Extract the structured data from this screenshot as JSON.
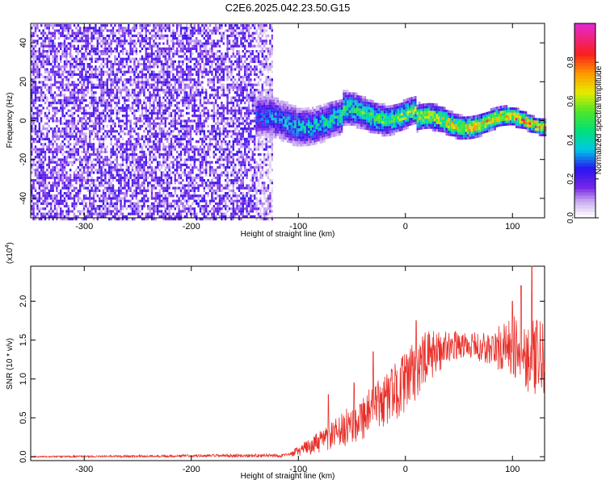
{
  "chart_data": [
    {
      "type": "heatmap",
      "title": "C2E6.2025.042.23.50.G15",
      "xlabel": "Height of straight line (km)",
      "ylabel": "Frequency (Hz)",
      "xlim": [
        -350,
        130
      ],
      "ylim": [
        -50,
        50
      ],
      "xticks": [
        -300,
        -200,
        -100,
        0,
        100
      ],
      "yticks": [
        -40,
        -20,
        0,
        20,
        40
      ],
      "colorbar": {
        "label": "Normalized spectral amplitude",
        "range": [
          0,
          1
        ],
        "ticks": [
          0.0,
          0.2,
          0.4,
          0.6,
          0.8
        ],
        "tick_labels": [
          "0.0",
          "0.2",
          "0.4",
          "0.6",
          "0.8"
        ]
      },
      "regions": [
        {
          "name": "broadband noise",
          "x_from": -350,
          "x_to": -125,
          "freq_from": -50,
          "freq_to": 50,
          "amplitude": 0.15
        },
        {
          "name": "signal band",
          "x_from": -140,
          "x_to": 130,
          "freq_center": 0,
          "freq_halfwidth_start": 8,
          "freq_halfwidth_end": 3,
          "amplitude_start": 0.3,
          "amplitude_end": 0.9
        }
      ]
    },
    {
      "type": "line",
      "xlabel": "Height of straight line (km)",
      "ylabel": "SNR (10 * v/v)",
      "scale_label": "(x10",
      "scale_exp": "4",
      "scale_close": ")",
      "xlim": [
        -350,
        130
      ],
      "ylim": [
        -0.05,
        2.45
      ],
      "xticks": [
        -300,
        -200,
        -100,
        0,
        100
      ],
      "yticks": [
        0.0,
        0.5,
        1.0,
        1.5,
        2.0
      ],
      "ytick_labels": [
        "0.0",
        "0.5",
        "1.0",
        "1.5",
        "2.0"
      ],
      "series": [
        {
          "name": "SNR",
          "color": "#e8302a",
          "envelope_x": [
            -350,
            -110,
            -100,
            -80,
            -60,
            -40,
            -20,
            0,
            20,
            40,
            60,
            80,
            100,
            115,
            130
          ],
          "envelope_y": [
            0.0,
            0.02,
            0.08,
            0.2,
            0.35,
            0.55,
            0.75,
            1.0,
            1.3,
            1.45,
            1.45,
            1.4,
            1.45,
            1.35,
            1.3
          ],
          "spread": [
            0.01,
            0.03,
            0.08,
            0.18,
            0.28,
            0.38,
            0.42,
            0.5,
            0.45,
            0.25,
            0.2,
            0.3,
            0.5,
            0.6,
            0.6
          ],
          "peaks": [
            {
              "x": -72,
              "y": 0.8
            },
            {
              "x": -48,
              "y": 0.95
            },
            {
              "x": -30,
              "y": 1.35
            },
            {
              "x": 10,
              "y": 1.75
            },
            {
              "x": 100,
              "y": 2.0
            },
            {
              "x": 108,
              "y": 2.2
            },
            {
              "x": 118,
              "y": 2.45
            }
          ]
        }
      ]
    }
  ]
}
